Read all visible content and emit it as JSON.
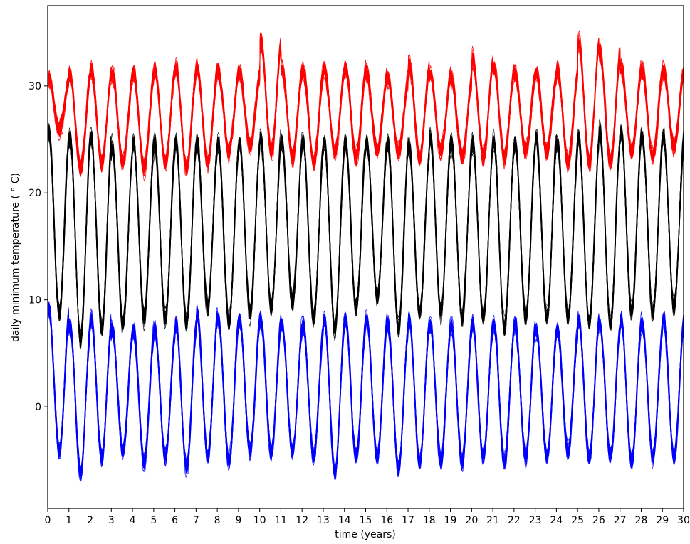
{
  "chart_data": {
    "type": "line",
    "title": "",
    "xlabel": "time (years)",
    "ylabel": "daily minimum temperature ($^\\circ$C)",
    "ylabel_display": "daily minimum temperature ( ° C)",
    "xlim": [
      0,
      30
    ],
    "ylim": [
      -9.5,
      37.5
    ],
    "x_ticks": [
      0,
      1,
      2,
      3,
      4,
      5,
      6,
      7,
      8,
      9,
      10,
      11,
      12,
      13,
      14,
      15,
      16,
      17,
      18,
      19,
      20,
      21,
      22,
      23,
      24,
      25,
      26,
      27,
      28,
      29,
      30
    ],
    "x_tick_labels": [
      "0",
      "1",
      "2",
      "3",
      "4",
      "5",
      "6",
      "7",
      "8",
      "9",
      "10",
      "11",
      "12",
      "13",
      "14",
      "15",
      "16",
      "17",
      "18",
      "19",
      "20",
      "21",
      "22",
      "23",
      "24",
      "25",
      "26",
      "27",
      "28",
      "29",
      "30"
    ],
    "y_ticks": [
      0,
      10,
      20,
      30
    ],
    "y_tick_labels": [
      "0",
      "10",
      "20",
      "30"
    ],
    "grid": false,
    "legend": "none",
    "ensemble_members_per_band": 40,
    "series": [
      {
        "color": "#ff0000",
        "mean_annual_peak": 29.5,
        "mean_annual_trough": 24.0,
        "peak_phase_year": 0.05,
        "annual_peaks": [
          31.5,
          32.0,
          32.3,
          32.0,
          32.0,
          32.5,
          32.5,
          32.5,
          32.3,
          32.0,
          35.0,
          32.5,
          32.3,
          32.5,
          32.5,
          32.0,
          31.5,
          32.8,
          32.0,
          31.5,
          33.3,
          32.5,
          32.0,
          32.0,
          32.3,
          35.0,
          34.0,
          32.5,
          32.3,
          32.3
        ],
        "annual_troughs": [
          25.0,
          21.5,
          22.0,
          22.0,
          21.5,
          22.0,
          21.5,
          22.0,
          23.0,
          23.5,
          23.0,
          22.5,
          22.0,
          23.0,
          22.5,
          23.0,
          23.0,
          22.5,
          23.0,
          22.5,
          22.5,
          22.5,
          23.0,
          23.0,
          22.0,
          22.0,
          22.0,
          23.0,
          22.5,
          23.5
        ]
      },
      {
        "color": "#000000",
        "mean_annual_peak": 25.0,
        "mean_annual_trough": 8.0,
        "peak_phase_year": 0.05,
        "annual_peaks": [
          26.5,
          26.0,
          26.0,
          25.0,
          25.5,
          25.5,
          25.5,
          25.5,
          25.5,
          25.5,
          26.0,
          25.5,
          25.5,
          25.5,
          25.5,
          25.5,
          25.5,
          25.0,
          26.0,
          25.5,
          25.5,
          25.5,
          25.5,
          26.0,
          25.5,
          26.0,
          26.5,
          26.5,
          26.0,
          26.0
        ],
        "annual_troughs": [
          8.0,
          5.5,
          6.5,
          7.0,
          7.5,
          7.5,
          7.0,
          8.5,
          7.0,
          8.0,
          8.5,
          9.0,
          7.5,
          6.5,
          8.5,
          9.5,
          6.5,
          8.0,
          8.0,
          7.5,
          7.5,
          6.5,
          7.5,
          7.5,
          7.5,
          7.0,
          7.0,
          8.0,
          8.0,
          8.5
        ]
      },
      {
        "color": "#0000ff",
        "mean_annual_peak": 8.0,
        "mean_annual_trough": -5.0,
        "peak_phase_year": 0.05,
        "annual_peaks": [
          10.0,
          8.5,
          9.0,
          8.0,
          8.0,
          8.0,
          8.5,
          9.5,
          9.0,
          9.0,
          9.0,
          8.5,
          8.5,
          9.0,
          9.0,
          9.0,
          8.5,
          9.0,
          8.5,
          8.5,
          8.5,
          8.5,
          8.5,
          8.0,
          8.0,
          9.0,
          8.5,
          9.0,
          8.5,
          9.0
        ],
        "annual_troughs": [
          -5.0,
          -7.0,
          -5.5,
          -5.0,
          -6.0,
          -5.5,
          -6.5,
          -5.5,
          -6.0,
          -5.0,
          -5.0,
          -5.0,
          -5.5,
          -7.0,
          -5.5,
          -5.5,
          -6.5,
          -6.0,
          -6.0,
          -6.0,
          -5.5,
          -6.0,
          -5.5,
          -5.5,
          -5.0,
          -5.5,
          -5.5,
          -6.0,
          -5.5,
          -5.5
        ]
      }
    ]
  }
}
